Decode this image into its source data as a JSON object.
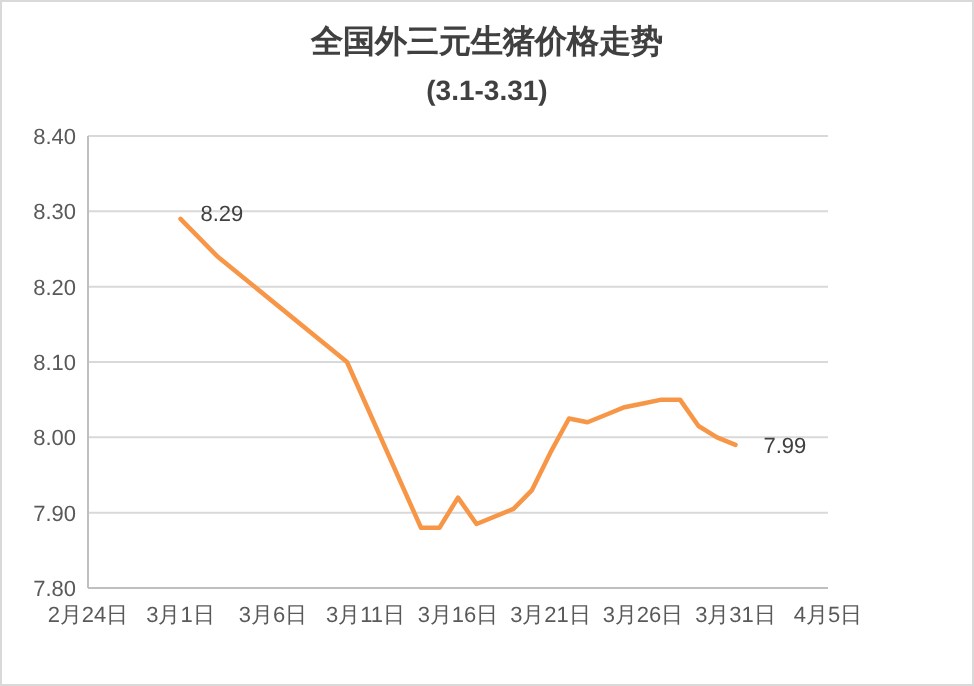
{
  "chart_data": {
    "type": "line",
    "title": "全国外三元生猪价格走势",
    "subtitle": "(3.1-3.31)",
    "x": [
      "--03-01",
      "--03-03",
      "--03-10",
      "--03-14",
      "--03-15",
      "--03-16",
      "--03-17",
      "--03-19",
      "--03-20",
      "--03-21",
      "--03-22",
      "--03-23",
      "--03-24",
      "--03-25",
      "--03-26",
      "--03-27",
      "--03-28",
      "--03-29",
      "--03-30",
      "--03-31"
    ],
    "series": [
      {
        "color": "#f79646",
        "values": [
          8.29,
          8.24,
          8.1,
          7.88,
          7.88,
          7.92,
          7.885,
          7.905,
          7.93,
          7.98,
          8.025,
          8.02,
          8.03,
          8.04,
          8.045,
          8.05,
          8.05,
          8.015,
          8.0,
          7.99
        ],
        "value_labels": [
          "8.29",
          null,
          null,
          null,
          null,
          null,
          null,
          null,
          null,
          null,
          null,
          null,
          null,
          null,
          null,
          null,
          null,
          null,
          null,
          "7.99"
        ]
      }
    ],
    "xlim": [
      "--02-24",
      "--04-05"
    ],
    "xticks": [
      {
        "value": "--02-24",
        "label": "2月24日"
      },
      {
        "value": "--03-01",
        "label": "3月1日"
      },
      {
        "value": "--03-06",
        "label": "3月6日"
      },
      {
        "value": "--03-11",
        "label": "3月11日"
      },
      {
        "value": "--03-16",
        "label": "3月16日"
      },
      {
        "value": "--03-21",
        "label": "3月21日"
      },
      {
        "value": "--03-26",
        "label": "3月26日"
      },
      {
        "value": "--03-31",
        "label": "3月31日"
      },
      {
        "value": "--04-05",
        "label": "4月5日"
      }
    ],
    "ylim": [
      7.8,
      8.4
    ],
    "yticks": [
      {
        "value": 7.8,
        "label": "7.80"
      },
      {
        "value": 7.9,
        "label": "7.90"
      },
      {
        "value": 8.0,
        "label": "8.00"
      },
      {
        "value": 8.1,
        "label": "8.10"
      },
      {
        "value": 8.2,
        "label": "8.20"
      },
      {
        "value": 8.3,
        "label": "8.30"
      },
      {
        "value": 8.4,
        "label": "8.40"
      }
    ],
    "grid": "y",
    "line_style": "solid",
    "marker": "none"
  }
}
